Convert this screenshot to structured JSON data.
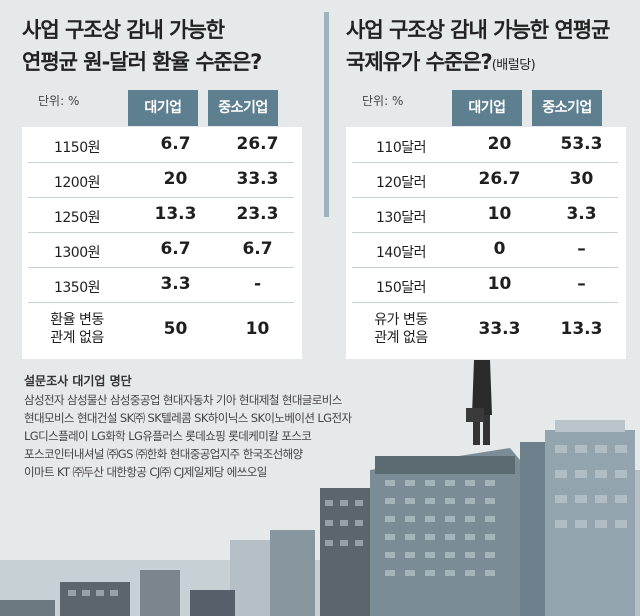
{
  "left": {
    "title_line1": "사업 구조상 감내 가능한",
    "title_line2": "연평균 원-달러 환율 수준은?",
    "unit": "단위: %",
    "col1": "대기업",
    "col2": "중소기업",
    "rows": [
      {
        "label": "1150원",
        "v1": "6.7",
        "v2": "26.7"
      },
      {
        "label": "1200원",
        "v1": "20",
        "v2": "33.3"
      },
      {
        "label": "1250원",
        "v1": "13.3",
        "v2": "23.3"
      },
      {
        "label": "1300원",
        "v1": "6.7",
        "v2": "6.7"
      },
      {
        "label": "1350원",
        "v1": "3.3",
        "v2": "-"
      }
    ],
    "last_row": {
      "label_line1": "환율 변동",
      "label_line2": "관계 없음",
      "v1": "50",
      "v2": "10"
    }
  },
  "right": {
    "title_line1": "사업 구조상 감내 가능한 연평균",
    "title_line2": "국제유가 수준은?",
    "title_sub": "(배럴당)",
    "unit": "단위: %",
    "col1": "대기업",
    "col2": "중소기업",
    "rows": [
      {
        "label": "110달러",
        "v1": "20",
        "v2": "53.3"
      },
      {
        "label": "120달러",
        "v1": "26.7",
        "v2": "30"
      },
      {
        "label": "130달러",
        "v1": "10",
        "v2": "3.3"
      },
      {
        "label": "140달러",
        "v1": "0",
        "v2": "–"
      },
      {
        "label": "150달러",
        "v1": "10",
        "v2": "–"
      }
    ],
    "last_row": {
      "label_line1": "유가 변동",
      "label_line2": "관계 없음",
      "v1": "33.3",
      "v2": "13.3"
    }
  },
  "survey": {
    "title": "설문조사 대기업 명단",
    "lines": [
      "삼성전자 삼성물산 삼성중공업 현대자동차 기아 현대제철 현대글로비스",
      "현대모비스 현대건설 SK㈜ SK텔레콤 SK하이닉스 SK이노베이션 LG전자",
      "LG디스플레이 LG화학 LG유플러스 롯데쇼핑 롯데케미칼 포스코",
      "포스코인터내셔널 ㈜GS ㈜한화 현대중공업지주 한국조선해양",
      "이마트 KT ㈜두산 대한항공 CJ㈜ CJ제일제당 에쓰오일"
    ]
  },
  "colors": {
    "header": "#5e7f90",
    "building_dark": "#3e4448",
    "building_mid": "#6d7980",
    "building_light": "#a9b6bd"
  }
}
